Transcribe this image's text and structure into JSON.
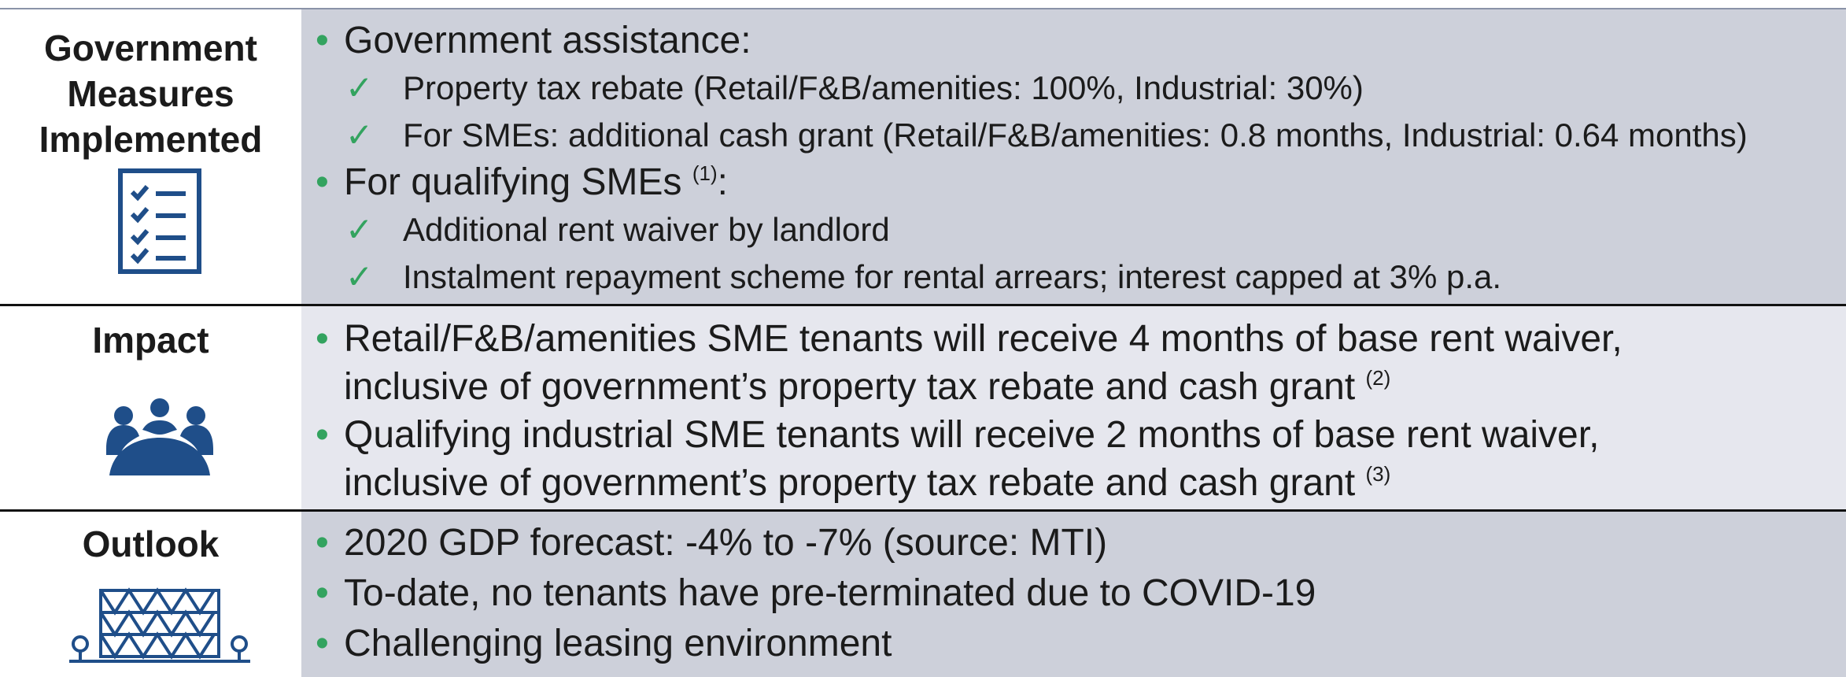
{
  "rows": [
    {
      "label": "Government Measures Implemented",
      "items": [
        {
          "level": 1,
          "lines": [
            "Government assistance:"
          ]
        },
        {
          "level": 2,
          "lines": [
            "Property tax rebate (Retail/F&B/amenities: 100%, Industrial: 30%)"
          ]
        },
        {
          "level": 2,
          "lines": [
            "For SMEs: additional cash grant (Retail/F&B/amenities: 0.8 months, Industrial: 0.64 months)"
          ]
        },
        {
          "level": 1,
          "lines": [
            "For qualifying SMEs "
          ],
          "sup": "(1)",
          "tail": ":"
        },
        {
          "level": 2,
          "lines": [
            "Additional rent waiver by landlord"
          ]
        },
        {
          "level": 2,
          "lines": [
            "Instalment repayment scheme for rental arrears; interest capped at 3% p.a."
          ]
        }
      ]
    },
    {
      "label": "Impact",
      "items": [
        {
          "level": 1,
          "lines": [
            "Retail/F&B/amenities SME tenants will receive 4 months of base rent waiver,",
            "inclusive of government’s property tax rebate and cash grant "
          ],
          "sup": "(2)"
        },
        {
          "level": 1,
          "lines": [
            "Qualifying industrial SME tenants will receive 2 months of base rent waiver,",
            "inclusive of government’s property tax rebate and cash grant "
          ],
          "sup": "(3)"
        }
      ]
    },
    {
      "label": "Outlook",
      "items": [
        {
          "level": 1,
          "lines": [
            "2020 GDP forecast: -4% to -7% (source: MTI)"
          ]
        },
        {
          "level": 1,
          "lines": [
            "To-date, no tenants have pre-terminated due to COVID-19"
          ]
        },
        {
          "level": 1,
          "lines": [
            "Challenging leasing environment"
          ]
        }
      ]
    }
  ]
}
